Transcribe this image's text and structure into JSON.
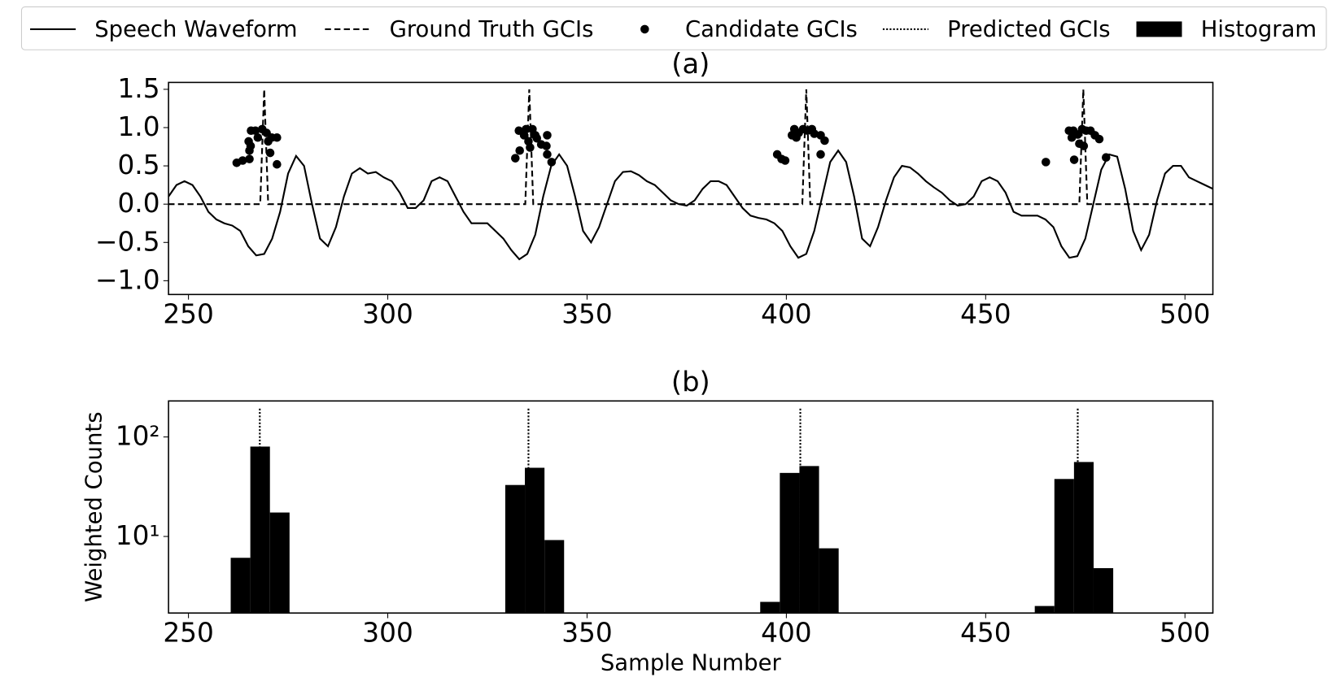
{
  "chart_data": [
    {
      "type": "line",
      "title": "(a)",
      "legend": "top",
      "xlim": [
        245,
        507
      ],
      "ylim": [
        -1.18,
        1.59
      ],
      "xticks": [
        250,
        300,
        350,
        400,
        450,
        500
      ],
      "yticks": [
        1.5,
        {
          "value": 1,
          "label": "1.0"
        },
        0.5,
        {
          "value": 0,
          "label": "0.0"
        },
        {
          "value": -0.5,
          "label": "−0.5"
        },
        {
          "value": -1,
          "label": "−1.0"
        }
      ],
      "series": [
        {
          "name": "Speech Waveform",
          "style": "solid",
          "color": "#000000",
          "x": [
            245,
            247,
            249,
            251,
            253,
            255,
            257,
            259,
            261,
            263,
            265,
            267,
            269,
            271,
            273,
            275,
            277,
            279,
            281,
            283,
            285,
            287,
            289,
            291,
            293,
            295,
            297,
            299,
            301,
            303,
            305,
            307,
            309,
            311,
            313,
            315,
            317,
            319,
            321,
            323,
            325,
            327,
            329,
            331,
            333,
            335,
            337,
            339,
            341,
            343,
            345,
            347,
            349,
            351,
            353,
            355,
            357,
            359,
            361,
            363,
            365,
            367,
            369,
            371,
            373,
            375,
            377,
            379,
            381,
            383,
            385,
            387,
            389,
            391,
            393,
            395,
            397,
            399,
            401,
            403,
            405,
            407,
            409,
            411,
            413,
            415,
            417,
            419,
            421,
            423,
            425,
            427,
            429,
            431,
            433,
            435,
            437,
            439,
            441,
            443,
            445,
            447,
            449,
            451,
            453,
            455,
            457,
            459,
            461,
            463,
            465,
            467,
            469,
            471,
            473,
            475,
            477,
            479,
            481,
            483,
            485,
            487,
            489,
            491,
            493,
            495,
            497,
            499,
            501,
            503,
            505,
            507
          ],
          "values": [
            0.1,
            0.25,
            0.3,
            0.25,
            0.1,
            -0.1,
            -0.2,
            -0.25,
            -0.28,
            -0.35,
            -0.55,
            -0.67,
            -0.65,
            -0.45,
            -0.1,
            0.4,
            0.63,
            0.5,
            0.0,
            -0.45,
            -0.55,
            -0.3,
            0.1,
            0.4,
            0.47,
            0.4,
            0.42,
            0.35,
            0.3,
            0.15,
            -0.05,
            -0.05,
            0.05,
            0.3,
            0.35,
            0.3,
            0.1,
            -0.1,
            -0.25,
            -0.25,
            -0.25,
            -0.35,
            -0.45,
            -0.6,
            -0.72,
            -0.65,
            -0.4,
            0.1,
            0.5,
            0.65,
            0.5,
            0.1,
            -0.35,
            -0.5,
            -0.3,
            0.0,
            0.3,
            0.42,
            0.43,
            0.38,
            0.3,
            0.25,
            0.15,
            0.05,
            0.0,
            -0.02,
            0.05,
            0.2,
            0.3,
            0.3,
            0.25,
            0.1,
            -0.05,
            -0.15,
            -0.18,
            -0.2,
            -0.25,
            -0.35,
            -0.55,
            -0.7,
            -0.65,
            -0.35,
            0.1,
            0.55,
            0.7,
            0.55,
            0.1,
            -0.45,
            -0.55,
            -0.3,
            0.05,
            0.35,
            0.5,
            0.48,
            0.4,
            0.3,
            0.22,
            0.15,
            0.05,
            -0.02,
            0.0,
            0.1,
            0.3,
            0.35,
            0.3,
            0.15,
            -0.1,
            -0.15,
            -0.15,
            -0.15,
            -0.2,
            -0.3,
            -0.55,
            -0.7,
            -0.68,
            -0.45,
            0.0,
            0.45,
            0.65,
            0.62,
            0.2,
            -0.35,
            -0.6,
            -0.4,
            0.05,
            0.4,
            0.5,
            0.5,
            0.35,
            0.3,
            0.25,
            0.2
          ]
        },
        {
          "name": "Ground Truth GCIs",
          "style": "dashed",
          "color": "#000000",
          "x": [
            245,
            268,
            269,
            270,
            334.5,
            335.5,
            336.5,
            404,
            405,
            406,
            473.5,
            474.5,
            475.5,
            507
          ],
          "values": [
            0,
            0,
            1.5,
            0,
            0,
            1.5,
            0,
            0,
            1.5,
            0,
            0,
            1.5,
            0,
            0
          ]
        },
        {
          "name": "Candidate GCIs",
          "style": "markers",
          "color": "#000000",
          "x": [
            262.1,
            263.6,
            265.3,
            265.3,
            265.1,
            265.7,
            266.8,
            268.5,
            267.4,
            265.6,
            269.6,
            270.0,
            270.5,
            270.9,
            272.2,
            272.2,
            332.0,
            333.1,
            332.9,
            334.2,
            335.3,
            335.7,
            336.3,
            337.0,
            337.4,
            338.5,
            339.8,
            340.0,
            341.1,
            340.0,
            334.7,
            397.7,
            398.8,
            399.7,
            401.4,
            402.0,
            403.1,
            404.2,
            405.3,
            406.4,
            407.0,
            408.6,
            409.6,
            408.6,
            402.5,
            465.1,
            470.9,
            471.6,
            472.0,
            473.1,
            472.2,
            473.5,
            474.2,
            475.2,
            476.3,
            477.4,
            478.5,
            480.2,
            474.6
          ],
          "values": [
            0.54,
            0.57,
            0.59,
            0.7,
            0.82,
            0.96,
            0.96,
            0.98,
            0.87,
            0.76,
            0.93,
            0.82,
            0.67,
            0.87,
            0.52,
            0.87,
            0.6,
            0.7,
            0.96,
            0.9,
            0.82,
            0.74,
            0.98,
            0.9,
            0.86,
            0.78,
            0.76,
            0.9,
            0.55,
            0.65,
            0.98,
            0.65,
            0.59,
            0.57,
            0.9,
            0.98,
            0.93,
            0.98,
            0.96,
            0.98,
            0.92,
            0.9,
            0.83,
            0.65,
            0.87,
            0.55,
            0.96,
            0.87,
            0.96,
            0.91,
            0.58,
            0.79,
            0.98,
            0.96,
            0.96,
            0.9,
            0.85,
            0.61,
            0.76
          ]
        }
      ]
    },
    {
      "type": "histogram",
      "title": "(b)",
      "xlabel": "Sample Number",
      "ylabel": "Weighted Counts",
      "log_y": true,
      "xlim": [
        245,
        507
      ],
      "ylim": [
        1.7,
        230
      ],
      "xticks": [
        250,
        300,
        350,
        400,
        450,
        500
      ],
      "yticks": [
        {
          "value": 10,
          "label": "10¹"
        },
        {
          "value": 100,
          "label": "10²"
        }
      ],
      "series": [
        {
          "name": "Predicted GCIs",
          "style": "dotted",
          "color": "#000000",
          "x": [
            267.9,
            335.3,
            403.5,
            473.1
          ]
        },
        {
          "name": "Histogram",
          "style": "bars",
          "color": "#000000",
          "bins": [
            260.6,
            265.52,
            270.44,
            275.36,
            280.28,
            285.2,
            290.12,
            295.04,
            299.96,
            304.88,
            309.8,
            314.72,
            319.64,
            324.56,
            329.48,
            334.4,
            339.32,
            344.24,
            349.16,
            354.08,
            359.0,
            363.92,
            368.84,
            373.76,
            378.68,
            383.6,
            388.52,
            393.44,
            398.36,
            403.28,
            408.2,
            413.12,
            418.04,
            422.96,
            427.88,
            432.8,
            437.72,
            442.64,
            447.56,
            452.48,
            457.4,
            462.32,
            467.24,
            472.16,
            477.08,
            482.0
          ],
          "values": [
            6.1,
            80,
            17.4,
            0,
            0,
            0,
            0,
            0,
            0,
            0,
            0,
            0,
            0,
            0,
            32.9,
            49,
            9.2,
            0,
            0,
            0,
            0,
            0,
            0,
            0,
            0,
            0,
            0,
            2.2,
            43.5,
            51,
            7.6,
            0,
            0,
            0,
            0,
            0,
            0,
            0,
            0,
            0,
            0,
            2.0,
            37.8,
            56,
            4.8
          ]
        }
      ]
    }
  ]
}
